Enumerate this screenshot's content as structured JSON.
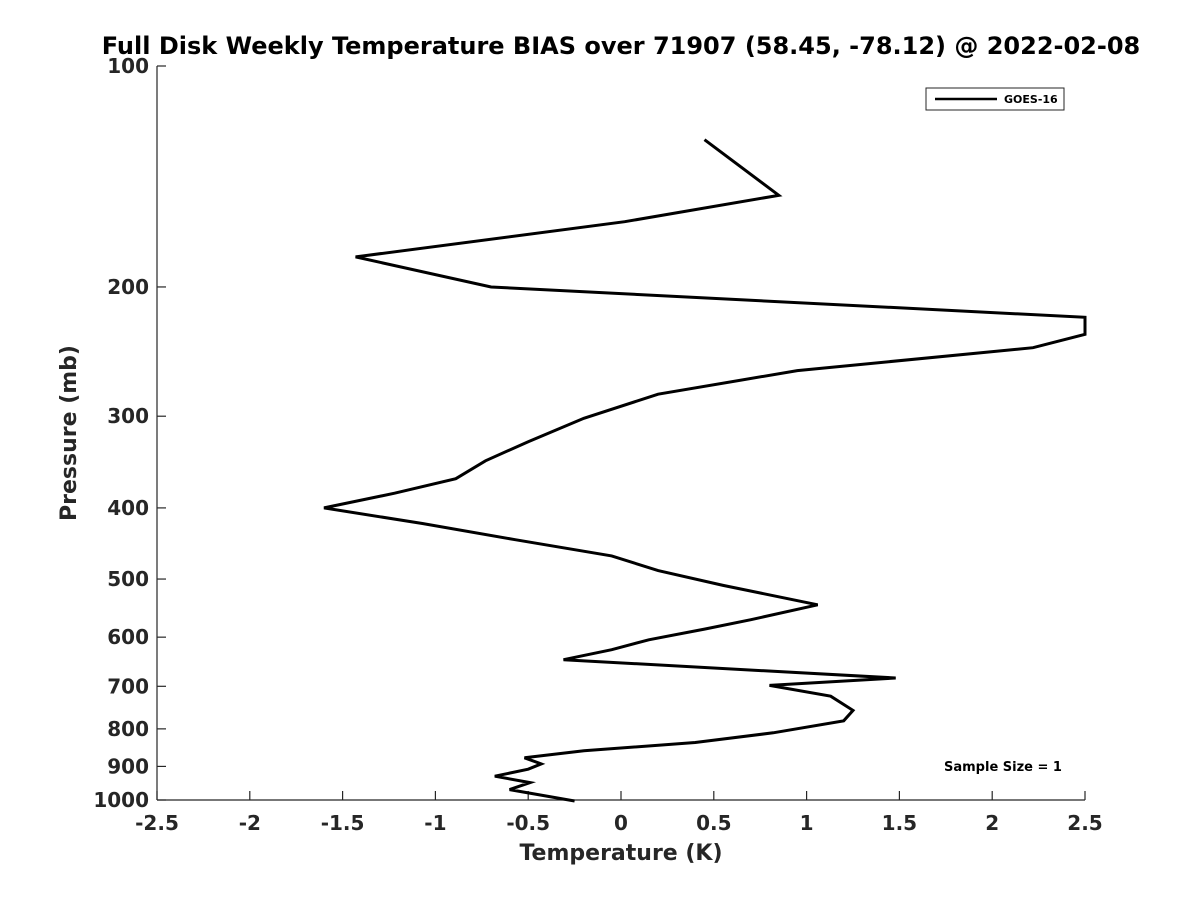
{
  "chart_data": {
    "type": "line",
    "title": "Full Disk Weekly Temperature BIAS over 71907 (58.45, -78.12) @ 2022-02-08",
    "xlabel": "Temperature (K)",
    "ylabel": "Pressure (mb)",
    "xlim": [
      -2.5,
      2.5
    ],
    "ylim": [
      100,
      1000
    ],
    "y_scale": "log",
    "y_reversed": true,
    "grid": false,
    "legend_position": "top-right",
    "x_ticks": [
      -2.5,
      -2,
      -1.5,
      -1,
      -0.5,
      0,
      0.5,
      1,
      1.5,
      2,
      2.5
    ],
    "x_tick_labels": [
      "-2.5",
      "-2",
      "-1.5",
      "-1",
      "-0.5",
      "0",
      "0.5",
      "1",
      "1.5",
      "2",
      "2.5"
    ],
    "y_ticks": [
      100,
      200,
      300,
      400,
      500,
      600,
      700,
      800,
      900,
      1000
    ],
    "y_tick_labels": [
      "100",
      "200",
      "300",
      "400",
      "500",
      "600",
      "700",
      "800",
      "900",
      "1000"
    ],
    "series": [
      {
        "name": "GOES-16",
        "color": "#000000",
        "x": [
          0.45,
          0.85,
          0.02,
          -1.43,
          -0.7,
          2.5,
          2.5,
          2.22,
          0.95,
          0.2,
          -0.2,
          -0.5,
          -0.73,
          -0.89,
          -1.22,
          -1.6,
          -1.07,
          -0.57,
          -0.05,
          0.2,
          0.55,
          1.06,
          0.7,
          0.45,
          0.15,
          -0.05,
          -0.31,
          1.48,
          0.8,
          1.13,
          1.25,
          1.2,
          0.82,
          0.4,
          -0.2,
          -0.52,
          -0.43,
          -0.5,
          -0.68,
          -0.49,
          -0.6,
          -0.25
        ],
        "y": [
          126,
          150,
          163,
          182,
          200,
          220,
          232,
          242,
          260,
          280,
          302,
          325,
          345,
          365,
          382,
          400,
          420,
          442,
          465,
          487,
          510,
          542,
          568,
          585,
          605,
          624,
          644,
          682,
          698,
          722,
          755,
          780,
          810,
          835,
          857,
          876,
          893,
          908,
          928,
          947,
          968,
          1003
        ]
      }
    ],
    "annotation": "Sample Size = 1"
  }
}
